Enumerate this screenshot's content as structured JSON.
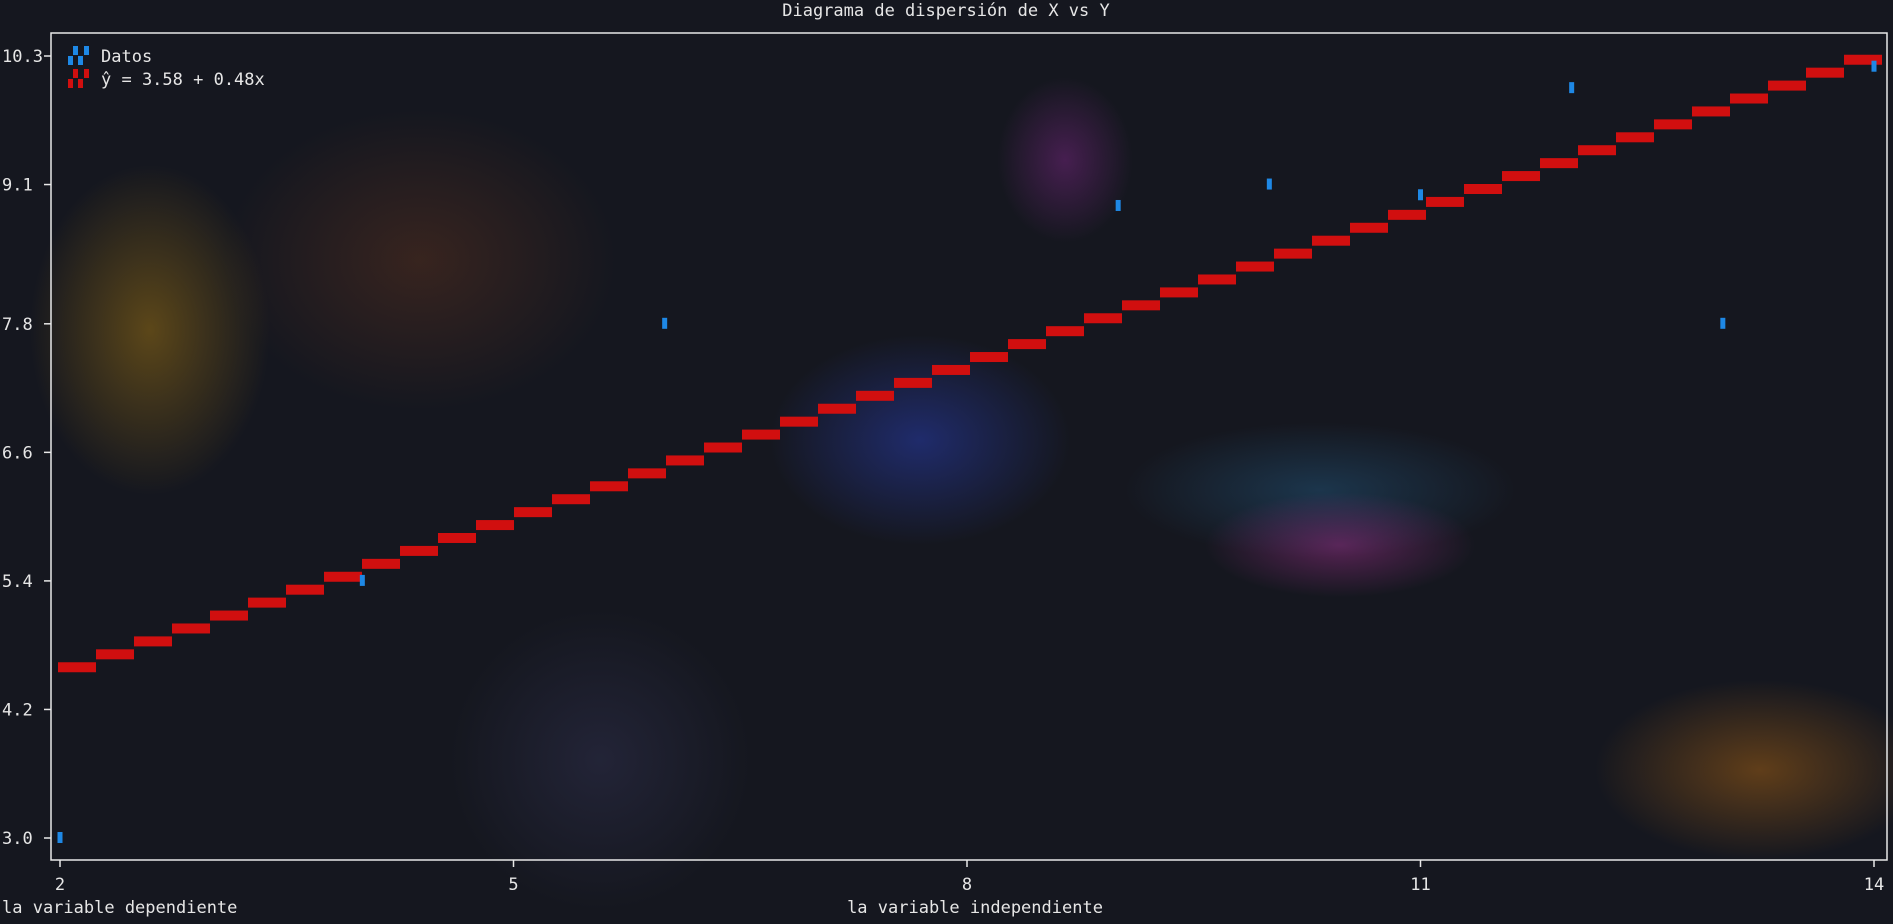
{
  "chart_data": {
    "type": "scatter",
    "title": "Diagrama de dispersión de X vs Y",
    "xlabel": "la variable independiente",
    "ylabel": "la variable dependiente",
    "xlim": [
      2,
      14
    ],
    "ylim": [
      3.0,
      10.3
    ],
    "xticks": [
      2,
      5,
      8,
      11,
      14
    ],
    "yticks": [
      "3.0",
      "4.2",
      "5.4",
      "6.6",
      "7.8",
      "9.1",
      "10.3"
    ],
    "grid": false,
    "legend": "top-left",
    "series": [
      {
        "name": "Datos",
        "kind": "points",
        "color": "#1e88e5",
        "x": [
          2,
          4,
          6,
          9,
          10,
          11,
          12,
          13,
          14
        ],
        "y": [
          3.0,
          5.4,
          7.8,
          8.9,
          9.1,
          9.0,
          10.0,
          7.8,
          10.2
        ]
      },
      {
        "name": "ŷ = 3.58 + 0.48x",
        "kind": "line",
        "color": "#d10f0f",
        "intercept": 3.58,
        "slope": 0.48
      }
    ]
  }
}
